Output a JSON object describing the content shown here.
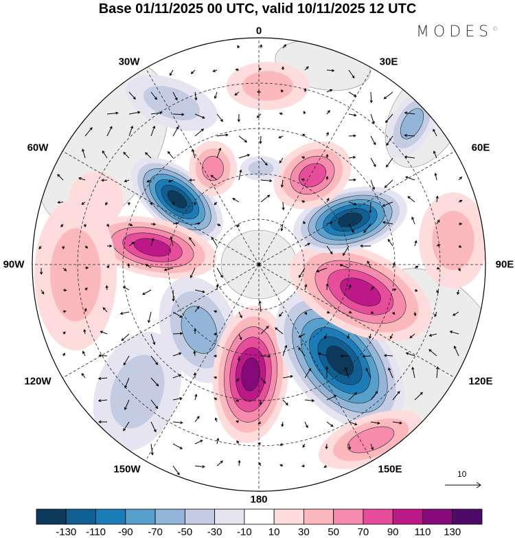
{
  "title": "Base 01/11/2025 00 UTC, valid 10/11/2025 12 UTC",
  "logo": {
    "text": "MODES",
    "mark": "©"
  },
  "lon_labels": [
    {
      "name": "0",
      "text": "0"
    },
    {
      "name": "30e",
      "text": "30E"
    },
    {
      "name": "60e",
      "text": "60E"
    },
    {
      "name": "90e",
      "text": "90E"
    },
    {
      "name": "120e",
      "text": "120E"
    },
    {
      "name": "150e",
      "text": "150E"
    },
    {
      "name": "180",
      "text": "180"
    },
    {
      "name": "150w",
      "text": "150W"
    },
    {
      "name": "120w",
      "text": "120W"
    },
    {
      "name": "90w",
      "text": "90W"
    },
    {
      "name": "60w",
      "text": "60W"
    },
    {
      "name": "30w",
      "text": "30W"
    }
  ],
  "vector_reference": {
    "label": "10"
  },
  "colorbar": {
    "levels": [
      "-130",
      "-110",
      "-90",
      "-70",
      "-50",
      "-30",
      "-10",
      "10",
      "30",
      "50",
      "70",
      "90",
      "110",
      "130"
    ],
    "colors": [
      "#0d3a5a",
      "#0f5f92",
      "#1c7cb8",
      "#57a0cb",
      "#93b6d8",
      "#c3cce2",
      "#e6e4f0",
      "#ffffff",
      "#fddcdb",
      "#fbb8bd",
      "#f78bad",
      "#e64d9b",
      "#bc1888",
      "#86097a",
      "#4d0a66"
    ]
  }
}
